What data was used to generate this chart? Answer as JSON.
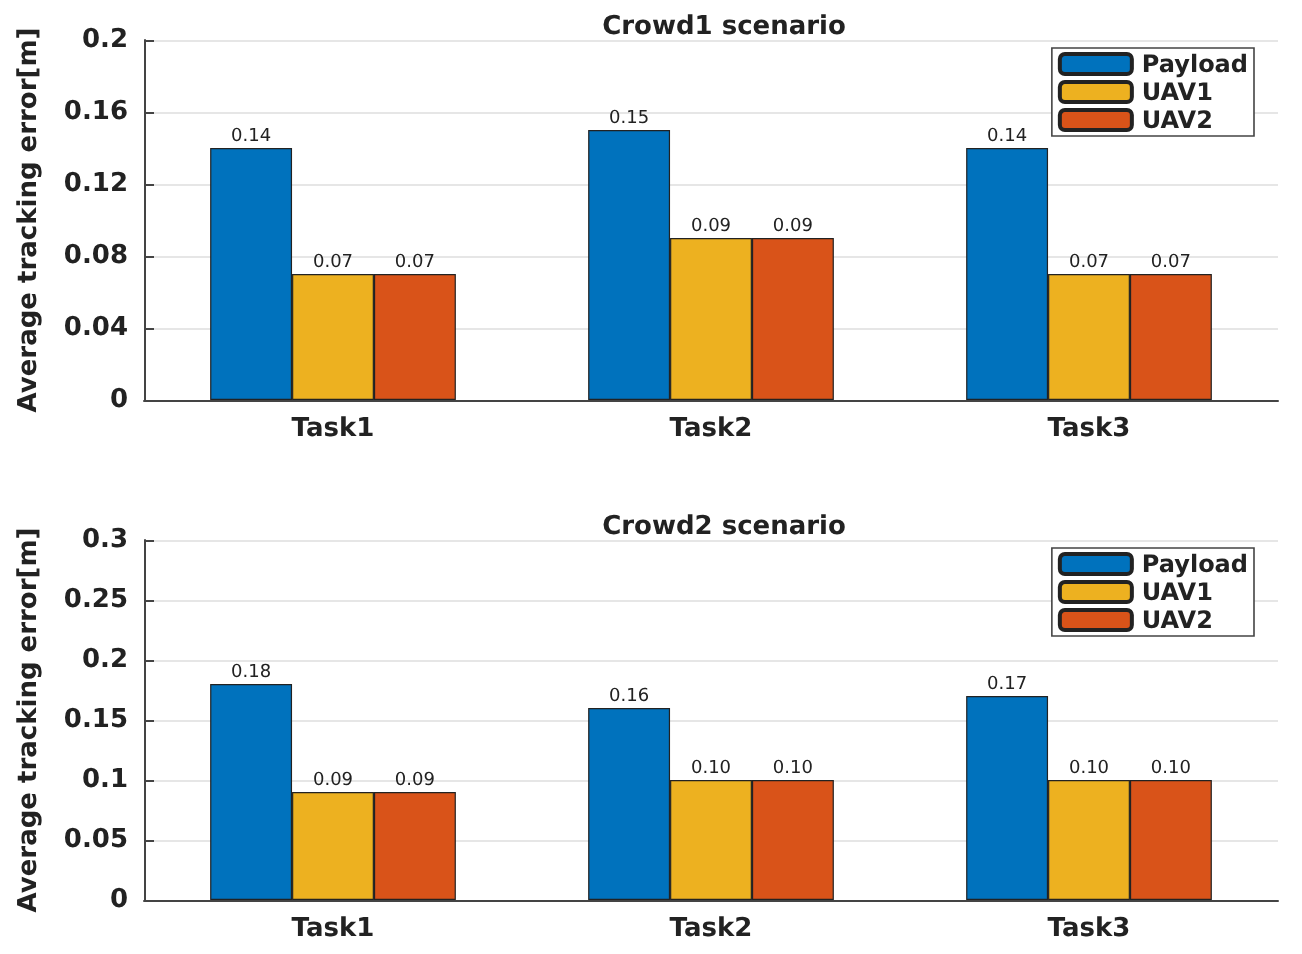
{
  "chart_data": [
    {
      "type": "bar",
      "title": "Crowd1 scenario",
      "ylabel": "Average tracking error[m]",
      "categories": [
        "Task1",
        "Task2",
        "Task3"
      ],
      "series": [
        {
          "name": "Payload",
          "color": "#0072bd",
          "values": [
            0.14,
            0.15,
            0.14
          ],
          "value_labels": [
            "0.14",
            "0.15",
            "0.14"
          ]
        },
        {
          "name": "UAV1",
          "color": "#edb120",
          "values": [
            0.07,
            0.09,
            0.07
          ],
          "value_labels": [
            "0.07",
            "0.09",
            "0.07"
          ]
        },
        {
          "name": "UAV2",
          "color": "#d95319",
          "values": [
            0.07,
            0.09,
            0.07
          ],
          "value_labels": [
            "0.07",
            "0.09",
            "0.07"
          ]
        }
      ],
      "ylim": [
        0,
        0.2
      ],
      "yticks": [
        0,
        0.04,
        0.08,
        0.12,
        0.16,
        0.2
      ],
      "grid": "y",
      "legend": "top right"
    },
    {
      "type": "bar",
      "title": "Crowd2 scenario",
      "ylabel": "Average tracking error[m]",
      "categories": [
        "Task1",
        "Task2",
        "Task3"
      ],
      "series": [
        {
          "name": "Payload",
          "color": "#0072bd",
          "values": [
            0.18,
            0.16,
            0.17
          ],
          "value_labels": [
            "0.18",
            "0.16",
            "0.17"
          ]
        },
        {
          "name": "UAV1",
          "color": "#edb120",
          "values": [
            0.09,
            0.1,
            0.1
          ],
          "value_labels": [
            "0.09",
            "0.10",
            "0.10"
          ]
        },
        {
          "name": "UAV2",
          "color": "#d95319",
          "values": [
            0.09,
            0.1,
            0.1
          ],
          "value_labels": [
            "0.09",
            "0.10",
            "0.10"
          ]
        }
      ],
      "ylim": [
        0,
        0.3
      ],
      "yticks": [
        0,
        0.05,
        0.1,
        0.15,
        0.2,
        0.25,
        0.3
      ],
      "grid": "y",
      "legend": "top right"
    }
  ]
}
